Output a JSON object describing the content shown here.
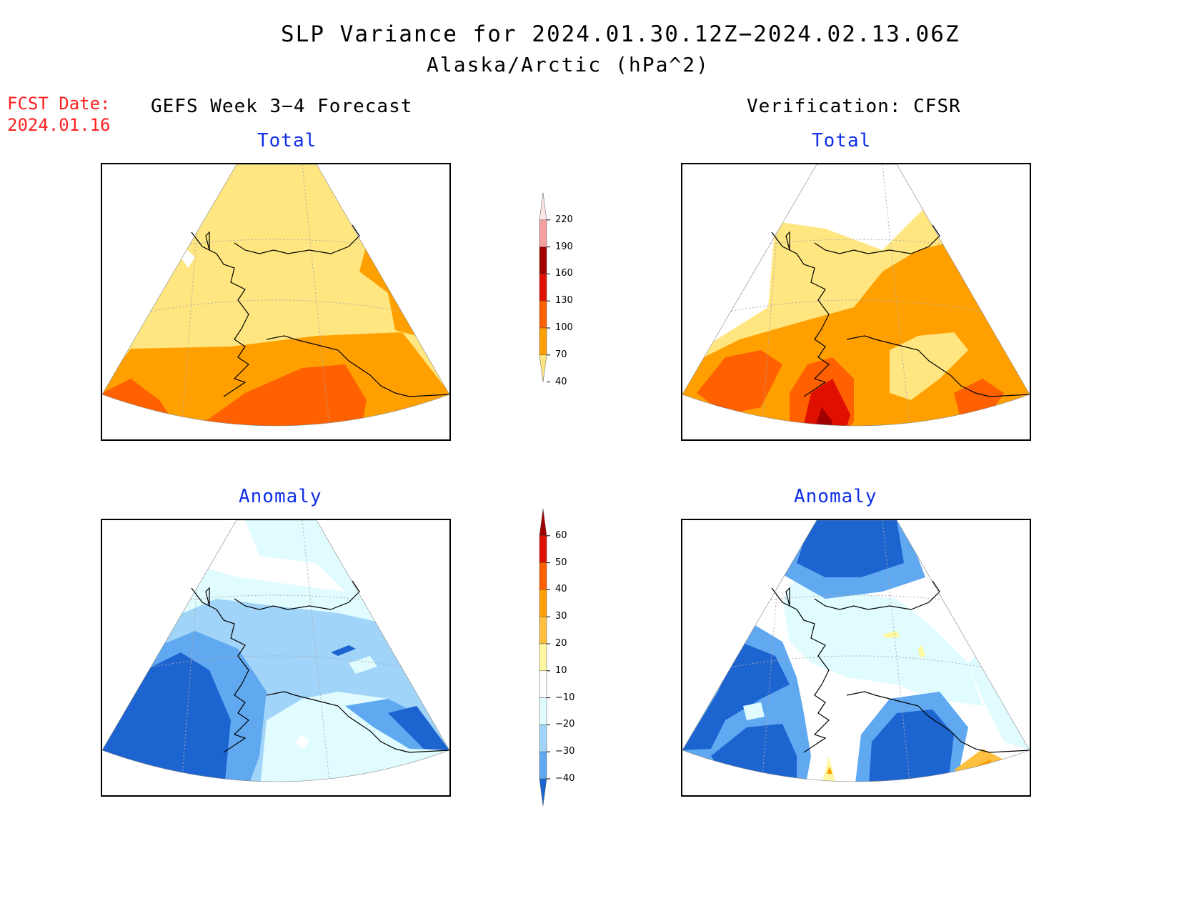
{
  "header": {
    "title": "SLP Variance for 2024.01.30.12Z−2024.02.13.06Z",
    "subtitle": "Alaska/Arctic (hPa^2)",
    "fcst_line1": "FCST Date:",
    "fcst_line2": "2024.01.16",
    "left_heading": "GEFS Week 3−4 Forecast",
    "right_heading": "Verification: CFSR"
  },
  "panels": {
    "forecast_total": "Total",
    "verification_total": "Total",
    "forecast_anomaly": "Anomaly",
    "verification_anomaly": "Anomaly"
  },
  "colorbars": {
    "total": {
      "labels": [
        "220",
        "190",
        "160",
        "130",
        "100",
        "70",
        "40"
      ],
      "colors": [
        "#fde6e6",
        "#f4a0a0",
        "#a00000",
        "#e01000",
        "#ff6000",
        "#ffa000",
        "#ffe680"
      ]
    },
    "anomaly": {
      "labels": [
        "60",
        "50",
        "40",
        "30",
        "20",
        "10",
        "−10",
        "−20",
        "−30",
        "−40"
      ],
      "colors": [
        "#a00000",
        "#e01000",
        "#ff6000",
        "#ffa000",
        "#ffc040",
        "#fff8a0",
        "#ffffff",
        "#e0fcff",
        "#a0d4f8",
        "#60a8f0",
        "#1c64d0"
      ]
    }
  },
  "colors": {
    "title_blue": "#1030e8",
    "fcst_red": "#ff2020"
  }
}
